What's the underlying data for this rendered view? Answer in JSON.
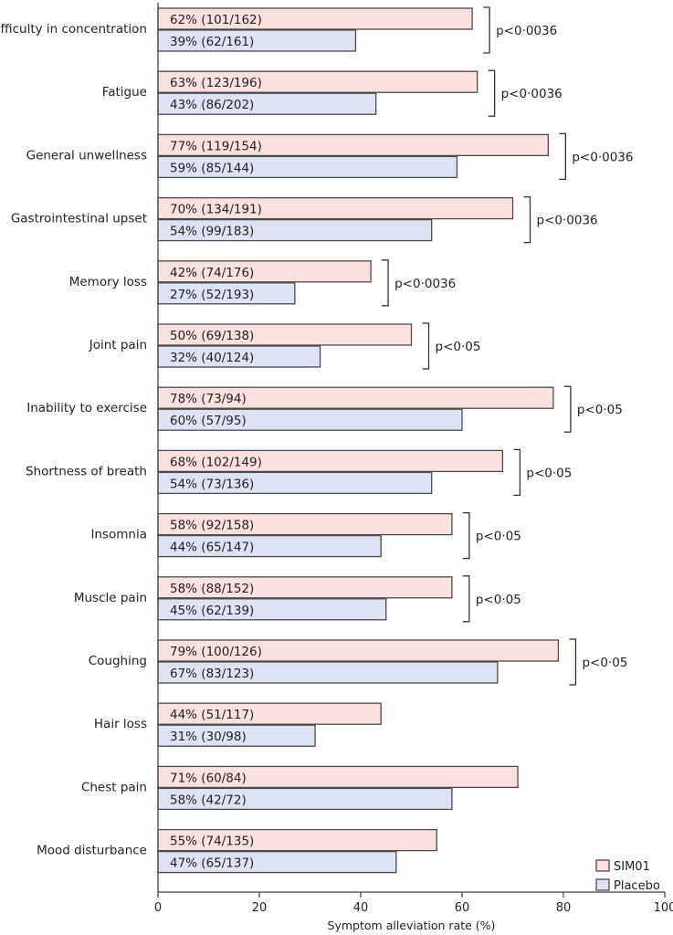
{
  "chart_data": {
    "type": "bar",
    "orientation": "horizontal",
    "xlabel": "Symptom alleviation rate (%)",
    "xlim": [
      0,
      100
    ],
    "xticks": [
      "0",
      "20",
      "40",
      "60",
      "80",
      "100"
    ],
    "grid": false,
    "legend_position": "bottom-right",
    "colors": {
      "SIM01": "#fbe0e0",
      "Placebo": "#dde3f3",
      "outline": "#4a4a4a"
    },
    "series": [
      {
        "name": "SIM01",
        "values": [
          62,
          63,
          77,
          70,
          42,
          50,
          78,
          68,
          58,
          58,
          79,
          44,
          71,
          55
        ]
      },
      {
        "name": "Placebo",
        "values": [
          39,
          43,
          59,
          54,
          27,
          32,
          60,
          54,
          44,
          45,
          67,
          31,
          58,
          47
        ]
      }
    ],
    "categories": [
      {
        "label": "Difficulty in concentration",
        "sim01": "62% (101/162)",
        "placebo": "39% (62/161)",
        "p": "p<0·0036"
      },
      {
        "label": "Fatigue",
        "sim01": "63% (123/196)",
        "placebo": "43% (86/202)",
        "p": "p<0·0036"
      },
      {
        "label": "General unwellness",
        "sim01": "77% (119/154)",
        "placebo": "59% (85/144)",
        "p": "p<0·0036"
      },
      {
        "label": "Gastrointestinal upset",
        "sim01": "70% (134/191)",
        "placebo": "54% (99/183)",
        "p": "p<0·0036"
      },
      {
        "label": "Memory loss",
        "sim01": "42% (74/176)",
        "placebo": "27% (52/193)",
        "p": "p<0·0036"
      },
      {
        "label": "Joint pain",
        "sim01": "50% (69/138)",
        "placebo": "32% (40/124)",
        "p": "p<0·05"
      },
      {
        "label": "Inability to exercise",
        "sim01": "78% (73/94)",
        "placebo": "60% (57/95)",
        "p": "p<0·05"
      },
      {
        "label": "Shortness of breath",
        "sim01": "68% (102/149)",
        "placebo": "54% (73/136)",
        "p": "p<0·05"
      },
      {
        "label": "Insomnia",
        "sim01": "58% (92/158)",
        "placebo": "44% (65/147)",
        "p": "p<0·05"
      },
      {
        "label": "Muscle pain",
        "sim01": "58% (88/152)",
        "placebo": "45% (62/139)",
        "p": "p<0·05"
      },
      {
        "label": "Coughing",
        "sim01": "79% (100/126)",
        "placebo": "67% (83/123)",
        "p": "p<0·05"
      },
      {
        "label": "Hair loss",
        "sim01": "44% (51/117)",
        "placebo": "31% (30/98)",
        "p": ""
      },
      {
        "label": "Chest pain",
        "sim01": "71% (60/84)",
        "placebo": "58% (42/72)",
        "p": ""
      },
      {
        "label": "Mood disturbance",
        "sim01": "55% (74/135)",
        "placebo": "47% (65/137)",
        "p": ""
      }
    ]
  }
}
